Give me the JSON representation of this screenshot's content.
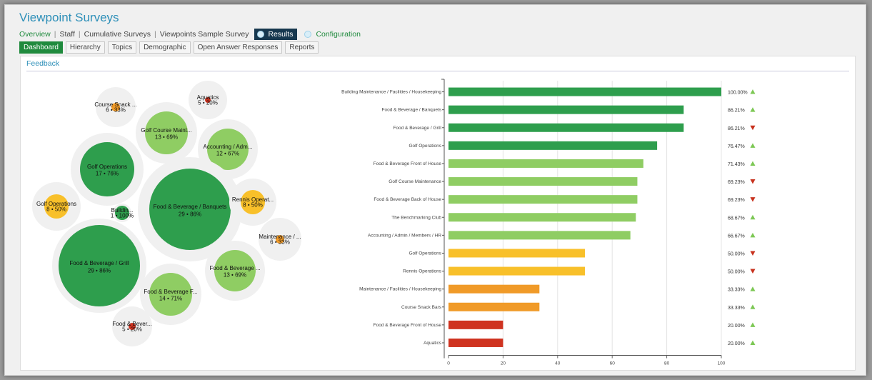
{
  "app_title": "Viewpoint Surveys",
  "breadcrumb": {
    "items": [
      "Overview",
      "Staff",
      "Cumulative Surveys",
      "Viewpoints Sample Survey"
    ],
    "results": "Results",
    "configuration": "Configuration"
  },
  "tabs": [
    "Dashboard",
    "Hierarchy",
    "Topics",
    "Demographic",
    "Open Answer Responses",
    "Reports"
  ],
  "panel_title": "Feedback",
  "colors": {
    "dark_green": "#2e9e4d",
    "light_green": "#8fcd63",
    "yellow": "#f8c02a",
    "orange": "#f09a28",
    "red": "#cf3320",
    "ring": "#f0f0f0"
  },
  "bubbles": [
    {
      "label": "Course Snack ...",
      "stats": "6 • 33%",
      "level": "orange"
    },
    {
      "label": "Aquatics",
      "stats": "5 • 20%",
      "level": "red"
    },
    {
      "label": "Golf Course Maint...",
      "stats": "13 • 69%",
      "level": "light_green"
    },
    {
      "label": "Accounting / Adm...",
      "stats": "12 • 67%",
      "level": "light_green"
    },
    {
      "label": "Golf Operations",
      "stats": "17 • 76%",
      "level": "dark_green"
    },
    {
      "label": "Golf Operations",
      "stats": "8 • 50%",
      "level": "yellow"
    },
    {
      "label": "Buildin...",
      "stats": "1 • 100%",
      "level": "dark_green"
    },
    {
      "label": "Food & Beverage / Banquets",
      "stats": "29 • 86%",
      "level": "dark_green"
    },
    {
      "label": "Rennis Operat...",
      "stats": "8 • 50%",
      "level": "yellow"
    },
    {
      "label": "Maintenance / ...",
      "stats": "6 • 33%",
      "level": "orange"
    },
    {
      "label": "Food & Beverage / Grill",
      "stats": "29 • 86%",
      "level": "dark_green"
    },
    {
      "label": "Food & Beverage ...",
      "stats": "13 • 69%",
      "level": "light_green"
    },
    {
      "label": "Food & Beverage F...",
      "stats": "14 • 71%",
      "level": "light_green"
    },
    {
      "label": "Food & Bever...",
      "stats": "5 • 20%",
      "level": "red"
    }
  ],
  "chart_data": {
    "type": "bar",
    "orientation": "horizontal",
    "categories": [
      "Building Maintenance / Facilities / Housekeeping",
      "Food & Beverage / Banquets",
      "Food & Beverage / Grill",
      "Golf Operations",
      "Food & Beverage Front of House",
      "Golf Course Maintenance",
      "Food & Beverage Back of House",
      "The Benchmarking Club",
      "Accounting / Admin / Members / HR",
      "Golf Operations",
      "Rennis Operations",
      "Maintenance / Facilities / Housekeeping",
      "Course Snack Bars",
      "Food & Beverage Front of House",
      "Aquatics"
    ],
    "values": [
      100,
      86.21,
      86.21,
      76.47,
      71.43,
      69.23,
      69.23,
      68.67,
      66.67,
      50,
      50,
      33.33,
      33.33,
      20,
      20
    ],
    "value_labels": [
      "100.00%",
      "86.21%",
      "86.21%",
      "76.47%",
      "71.43%",
      "69.23%",
      "69.23%",
      "68.67%",
      "66.67%",
      "50.00%",
      "50.00%",
      "33.33%",
      "33.33%",
      "20.00%",
      "20.00%"
    ],
    "trend": [
      "up",
      "up",
      "down",
      "up",
      "up",
      "down",
      "down",
      "up",
      "up",
      "down",
      "down",
      "up",
      "up",
      "up",
      "up"
    ],
    "levels": [
      "dark_green",
      "dark_green",
      "dark_green",
      "dark_green",
      "light_green",
      "light_green",
      "light_green",
      "light_green",
      "light_green",
      "yellow",
      "yellow",
      "orange",
      "orange",
      "red",
      "red"
    ],
    "xlim": [
      0,
      100
    ],
    "xticks": [
      "0",
      "20",
      "40",
      "60",
      "80",
      "100"
    ],
    "grid": true,
    "trend_colors": {
      "up": "#7dc855",
      "down": "#c8321e"
    }
  }
}
